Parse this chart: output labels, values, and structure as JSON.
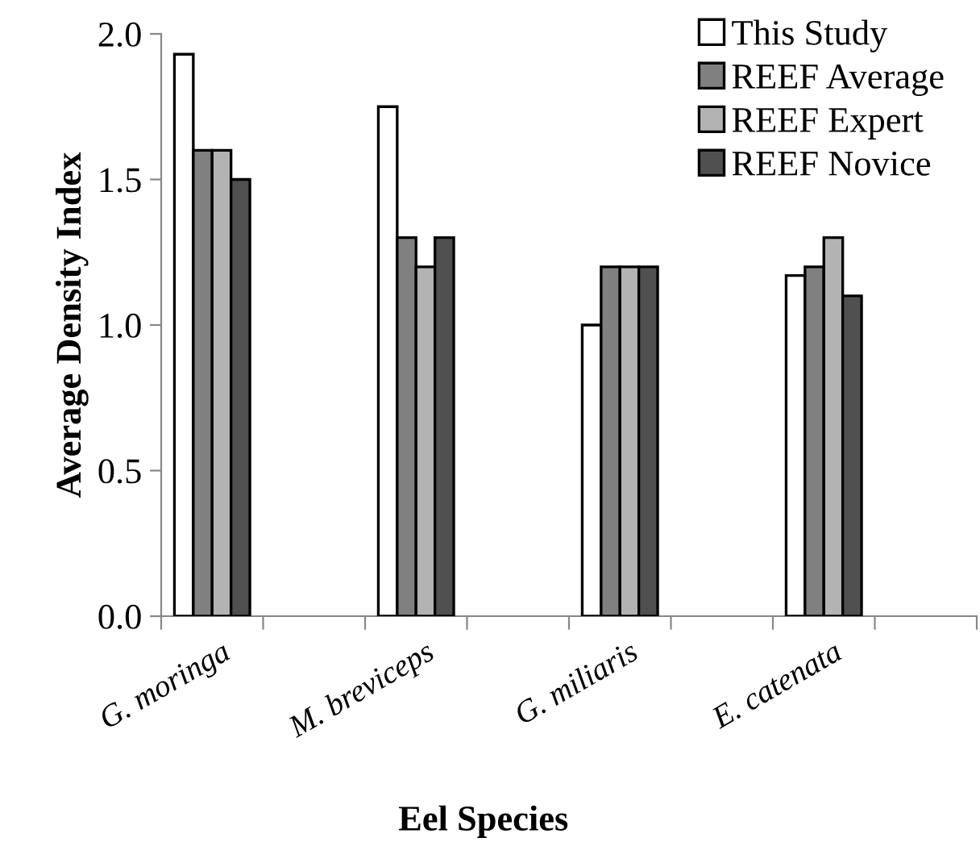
{
  "chart_data": {
    "type": "bar",
    "xlabel": "Eel Species",
    "ylabel": "Average Density Index",
    "categories": [
      "G. moringa",
      null,
      "M. breviceps",
      null,
      "G. miliaris",
      null,
      "E. catenata",
      null
    ],
    "series": [
      {
        "name": "This Study",
        "color": "#ffffff",
        "values": [
          1.93,
          null,
          1.75,
          null,
          1.0,
          null,
          1.17,
          null
        ]
      },
      {
        "name": "REEF Average",
        "color": "#808080",
        "values": [
          1.6,
          null,
          1.3,
          null,
          1.2,
          null,
          1.2,
          null
        ]
      },
      {
        "name": "REEF Expert",
        "color": "#b3b3b3",
        "values": [
          1.6,
          null,
          1.2,
          null,
          1.2,
          null,
          1.3,
          null
        ]
      },
      {
        "name": "REEF Novice",
        "color": "#505050",
        "values": [
          1.5,
          null,
          1.3,
          null,
          1.2,
          null,
          1.1,
          null
        ]
      }
    ],
    "ylim": [
      0,
      2.0
    ],
    "yticks": [
      {
        "value": 0,
        "label": "0.0"
      },
      {
        "value": 0.5,
        "label": "0.5"
      },
      {
        "value": 1.0,
        "label": "1.0"
      },
      {
        "value": 1.5,
        "label": "1.5"
      },
      {
        "value": 2.0,
        "label": "2.0"
      }
    ],
    "grid": false,
    "legend": "top right"
  }
}
